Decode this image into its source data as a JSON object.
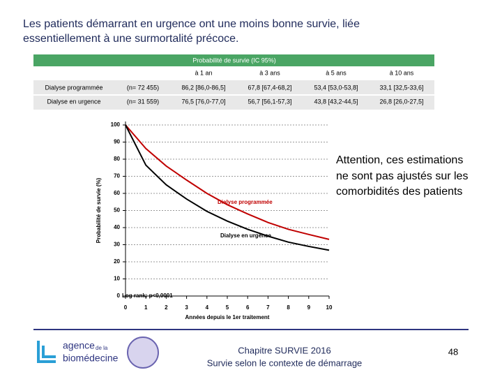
{
  "title": [
    "Les patients démarrant en urgence ont une moins bonne survie, liée",
    "essentiellement à une surmortalité précoce."
  ],
  "table": {
    "header": "Probabilité de survie (IC 95%)",
    "columns": [
      "à 1 an",
      "à 3 ans",
      "à 5 ans",
      "à 10 ans"
    ],
    "rows": [
      [
        "Dialyse programmée",
        "(n= 72 455)",
        "86,2 [86,0-86,5]",
        "67,8 [67,4-68,2]",
        "53,4 [53,0-53,8]",
        "33,1 [32,5-33,6]"
      ],
      [
        "Dialyse en urgence",
        "(n= 31 559)",
        "76,5 [76,0-77,0]",
        "56,7 [56,1-57,3]",
        "43,8 [43,2-44,5]",
        "26,8 [26,0-27,5]"
      ]
    ]
  },
  "chart_data": {
    "type": "line",
    "x": [
      0,
      1,
      2,
      3,
      4,
      5,
      6,
      7,
      8,
      9,
      10
    ],
    "series": [
      {
        "name": "Dialyse programmée",
        "color": "#c00000",
        "values": [
          100,
          86.2,
          76,
          67.8,
          60,
          53.4,
          48,
          43,
          39,
          36,
          33.1
        ]
      },
      {
        "name": "Dialyse en urgence",
        "color": "#000000",
        "values": [
          100,
          76.5,
          65,
          56.7,
          49.5,
          43.8,
          39,
          35,
          31.5,
          29,
          26.8
        ]
      }
    ],
    "xlabel": "Années depuis le 1er traitement",
    "ylabel": "Probabilité de survie (%)",
    "annotation": "Log rank: p<0,0001",
    "xlim": [
      0,
      10
    ],
    "xticks": [
      0,
      1,
      2,
      3,
      4,
      5,
      6,
      7,
      8,
      9,
      10
    ],
    "ylim": [
      0,
      100
    ],
    "yticks": [
      0,
      10,
      20,
      30,
      40,
      50,
      60,
      70,
      80,
      90,
      100
    ],
    "grid": true
  },
  "note": [
    "Attention, ces estimations",
    "ne sont pas ajustés sur les",
    "comorbidités des patients"
  ],
  "footer": {
    "logo": [
      "agence",
      "de la",
      "biomédecine"
    ],
    "lines": [
      "Chapitre SURVIE 2016",
      "Survie selon le contexte de démarrage"
    ],
    "page": "48"
  }
}
